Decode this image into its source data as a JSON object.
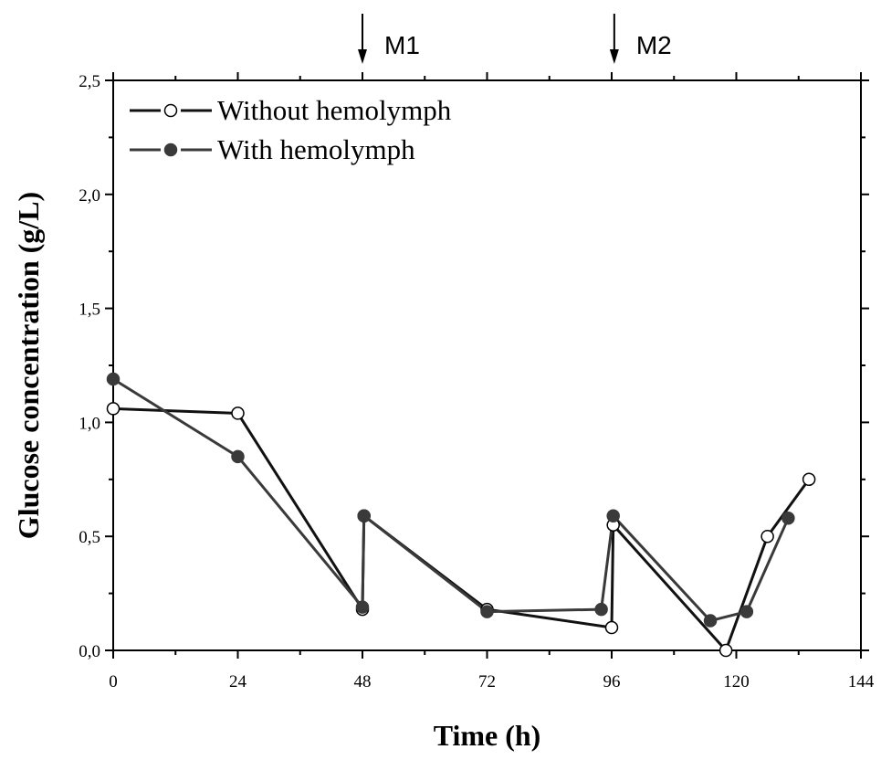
{
  "chart_data": {
    "type": "line",
    "xlabel": "Time (h)",
    "ylabel": "Glucose concentration (g/L)",
    "xlim": [
      0,
      144
    ],
    "ylim": [
      0,
      2.5
    ],
    "x_ticks": [
      "0",
      "24",
      "48",
      "72",
      "96",
      "120",
      "144"
    ],
    "y_ticks": [
      "0,0",
      "0,5",
      "1,0",
      "1,5",
      "2,0",
      "2,5"
    ],
    "grid": false,
    "legend_position": "top-left",
    "series": [
      {
        "name": "Without hemolymph",
        "marker": "open-circle",
        "color": "#111111",
        "points": [
          [
            0,
            1.06
          ],
          [
            24,
            1.04
          ],
          [
            48,
            0.18
          ],
          [
            48.3,
            0.59
          ],
          [
            72,
            0.18
          ],
          [
            96,
            0.1
          ],
          [
            96.3,
            0.55
          ],
          [
            118,
            0.0
          ],
          [
            126,
            0.5
          ],
          [
            134,
            0.75
          ]
        ]
      },
      {
        "name": "With hemolymph",
        "marker": "filled-circle",
        "color": "#3a3a3a",
        "points": [
          [
            0,
            1.19
          ],
          [
            24,
            0.85
          ],
          [
            48,
            0.19
          ],
          [
            48.3,
            0.59
          ],
          [
            72,
            0.17
          ],
          [
            94,
            0.18
          ],
          [
            96.3,
            0.59
          ],
          [
            115,
            0.13
          ],
          [
            122,
            0.17
          ],
          [
            130,
            0.58
          ]
        ]
      }
    ],
    "annotations": [
      {
        "label": "M1",
        "x": 48
      },
      {
        "label": "M2",
        "x": 96.5
      }
    ]
  }
}
